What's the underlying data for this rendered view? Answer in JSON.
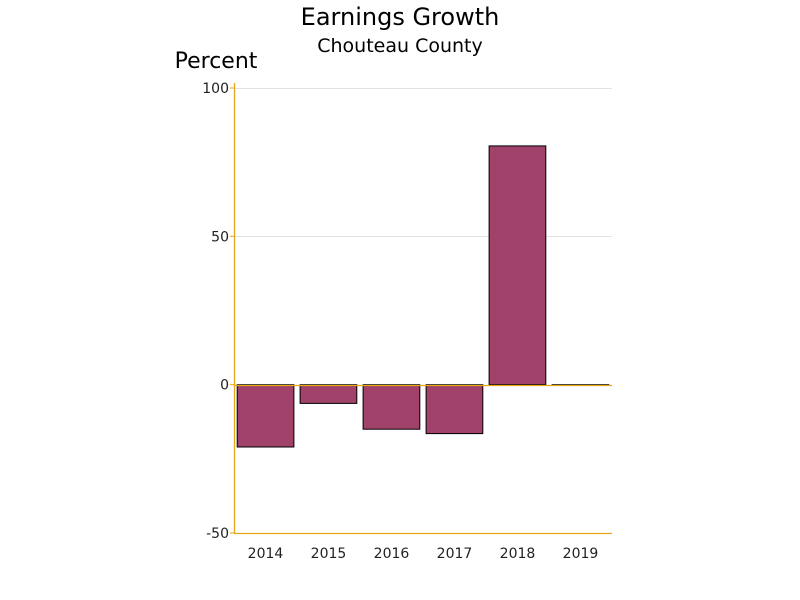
{
  "chart_data": {
    "type": "bar",
    "title": "Earnings Growth",
    "subtitle": "Chouteau County",
    "xlabel": "",
    "ylabel": "Percent",
    "categories": [
      "2014",
      "2015",
      "2016",
      "2017",
      "2018",
      "2019"
    ],
    "values": [
      -21,
      -6.3,
      -15,
      -16.5,
      80.5,
      0
    ],
    "ylim": [
      -50,
      100
    ],
    "yticks": [
      100,
      50,
      0,
      -50
    ],
    "grid": true,
    "legend": "none"
  },
  "colors": {
    "bar_fill": "#A0426A",
    "bar_stroke": "#000000",
    "axis": "#E6A619",
    "grid": "#E2E2E2",
    "background": "#FFFFFF"
  }
}
